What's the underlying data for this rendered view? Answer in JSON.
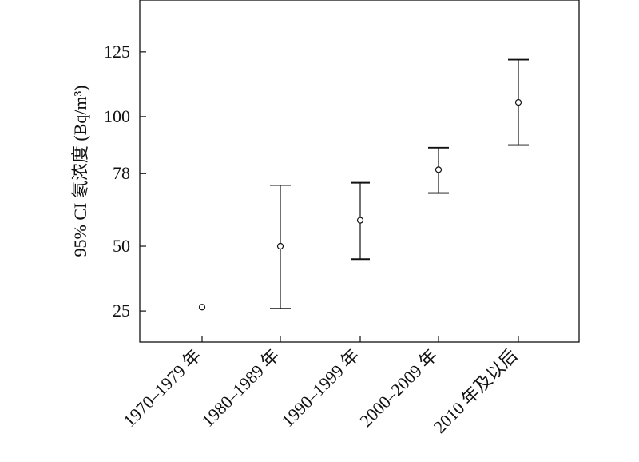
{
  "chart_data": {
    "type": "scatter",
    "title": "",
    "xlabel": "",
    "ylabel": "95% CI 氡浓度 (Bq/m³)",
    "categories": [
      "1970–1979 年",
      "1980–1989 年",
      "1990–1999 年",
      "2000–2009 年",
      "2010 年及以后"
    ],
    "y_ticks": [
      25,
      50,
      78,
      100,
      125
    ],
    "y_tick_labels": [
      "25",
      "50",
      "78",
      "100",
      "125"
    ],
    "ylim": [
      13,
      145
    ],
    "grid": false,
    "series": [
      {
        "point": [
          26.5,
          50,
          60,
          79.5,
          105.5
        ],
        "lower": [
          null,
          26,
          45,
          70.5,
          89
        ],
        "upper": [
          null,
          73.5,
          74.5,
          88,
          122
        ]
      }
    ]
  }
}
